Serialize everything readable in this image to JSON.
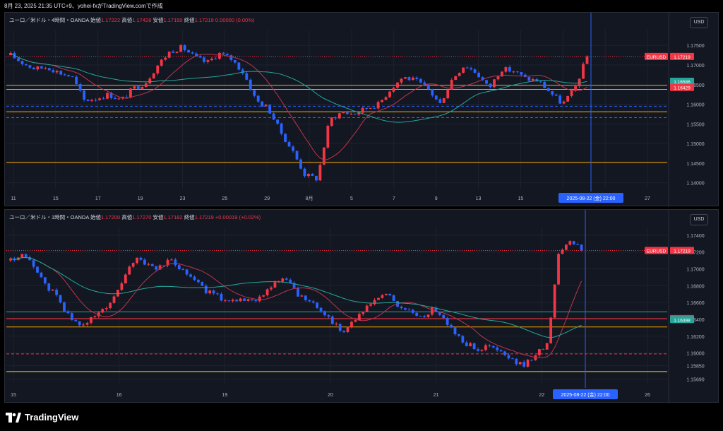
{
  "header": {
    "text": "8月 23, 2025 21:35 UTC+9、yohei-fxがTradingView.comで作成"
  },
  "footer": {
    "brand": "TradingView"
  },
  "colors": {
    "up": "#f23645",
    "down": "#2962ff",
    "red_ma": "#c2334d",
    "teal_ma": "#26a69a",
    "orange_line": "#f7a600",
    "yellow_line": "#f5d31a",
    "dotted_red": "#f23645",
    "dashed_blue": "#2962ff",
    "wave_green": "#4caf50",
    "cursor": "#2962ff"
  },
  "panes": [
    {
      "legend": {
        "symbol": "ユーロ／米ドル・4時間・OANDA",
        "o_label": "始値",
        "o": "1.17222",
        "h_label": "高値",
        "h": "1.17428",
        "l_label": "安値",
        "l": "1.17150",
        "c_label": "終値",
        "c": "1.17219",
        "chg": "0.00000 (0.00%)"
      },
      "currency": "USD",
      "chart_data": {
        "type": "candlestick",
        "ylim": [
          1.1385,
          1.179
        ],
        "y_ticks": [
          "1.17500",
          "1.17000",
          "1.16500",
          "1.16000",
          "1.15500",
          "1.15000",
          "1.14500",
          "1.14000"
        ],
        "x_ticks": [
          "11",
          "15",
          "17",
          "19",
          "23",
          "25",
          "29",
          "8月",
          "5",
          "7",
          "9",
          "13",
          "15",
          "19",
          "21",
          "27"
        ],
        "path_points": [
          1.1725,
          1.1705,
          1.169,
          1.1695,
          1.168,
          1.167,
          1.161,
          1.1615,
          1.1625,
          1.161,
          1.164,
          1.1655,
          1.17,
          1.1735,
          1.1745,
          1.172,
          1.1705,
          1.173,
          1.1715,
          1.168,
          1.161,
          1.159,
          1.153,
          1.148,
          1.142,
          1.141,
          1.156,
          1.158,
          1.1575,
          1.159,
          1.16,
          1.164,
          1.167,
          1.166,
          1.164,
          1.16,
          1.1665,
          1.17,
          1.168,
          1.164,
          1.169,
          1.1685,
          1.1665,
          1.166,
          1.163,
          1.16,
          1.164,
          1.1722
        ],
        "current_price": "1.17219",
        "price_labels": [
          {
            "text": "EURUSD",
            "value": 1.17219,
            "color": "#f23645",
            "name": "symbol"
          },
          {
            "text": "1.17219",
            "value": 1.17219,
            "color": "#f23645",
            "name": "price"
          },
          {
            "text": "1.16586",
            "value": 1.16586,
            "color": "#26a69a",
            "name": "ma"
          },
          {
            "text": "1.16429",
            "value": 1.16429,
            "color": "#f23645",
            "name": "ma2"
          }
        ],
        "h_lines": [
          {
            "value": 1.17219,
            "style": "dotted",
            "color": "#f23645"
          },
          {
            "value": 1.1648,
            "style": "solid",
            "color": "#f7a600"
          },
          {
            "value": 1.1638,
            "style": "solid",
            "color": "#f7a600"
          },
          {
            "value": 1.1595,
            "style": "dashed",
            "color": "#2962ff"
          },
          {
            "value": 1.1581,
            "style": "solid",
            "color": "#f7a600"
          },
          {
            "value": 1.1566,
            "style": "dashed",
            "color": "#2962ff"
          },
          {
            "value": 1.1452,
            "style": "solid",
            "color": "#f7a600"
          }
        ],
        "cursor_label": "2025-08-22 (金)  22:00"
      }
    },
    {
      "legend": {
        "symbol": "ユーロ／米ドル・1時間・OANDA",
        "o_label": "始値",
        "o": "1.17200",
        "h_label": "高値",
        "h": "1.17270",
        "l_label": "安値",
        "l": "1.17182",
        "c_label": "終値",
        "c": "1.17219",
        "chg": "+0.00019 (+0.02%)"
      },
      "currency": "USD",
      "chart_data": {
        "type": "candlestick",
        "ylim": [
          1.1562,
          1.175
        ],
        "y_ticks": [
          "1.17400",
          "1.17200",
          "1.17000",
          "1.16800",
          "1.16600",
          "1.16400",
          "1.16200",
          "1.16000",
          "1.15850",
          "1.15690"
        ],
        "x_ticks": [
          "15",
          "16",
          "19",
          "20",
          "21",
          "22",
          "26"
        ],
        "path_points": [
          1.171,
          1.1715,
          1.1705,
          1.168,
          1.167,
          1.1645,
          1.1632,
          1.164,
          1.165,
          1.1665,
          1.169,
          1.1715,
          1.1705,
          1.17,
          1.1712,
          1.17,
          1.169,
          1.1675,
          1.1668,
          1.1662,
          1.1665,
          1.166,
          1.167,
          1.168,
          1.169,
          1.1672,
          1.166,
          1.1655,
          1.164,
          1.1625,
          1.1638,
          1.165,
          1.1665,
          1.167,
          1.1655,
          1.165,
          1.164,
          1.1655,
          1.164,
          1.1622,
          1.161,
          1.1605,
          1.1608,
          1.16,
          1.159,
          1.1585,
          1.16,
          1.161,
          1.172,
          1.1735,
          1.1722
        ],
        "current_price": "1.17219",
        "price_labels": [
          {
            "text": "EURUSD",
            "value": 1.17219,
            "color": "#f23645",
            "name": "symbol"
          },
          {
            "text": "1.17219",
            "value": 1.17219,
            "color": "#f23645",
            "name": "price"
          },
          {
            "text": "1.16410",
            "value": 1.1641,
            "color": "#f23645",
            "name": "ma"
          },
          {
            "text": "1.16398",
            "value": 1.16398,
            "color": "#26a69a",
            "name": "ma2"
          }
        ],
        "h_lines": [
          {
            "value": 1.17219,
            "style": "dotted",
            "color": "#f23645"
          },
          {
            "value": 1.1649,
            "style": "solid",
            "color": "#26a69a"
          },
          {
            "value": 1.1641,
            "style": "solid",
            "color": "#f23645"
          },
          {
            "value": 1.1631,
            "style": "solid",
            "color": "#f7a600"
          },
          {
            "value": 1.1599,
            "style": "dashed",
            "color": "#f23645"
          },
          {
            "value": 1.1578,
            "style": "solid",
            "color": "#f5d31a"
          }
        ],
        "cursor_label": "2025-08-22 (金)  22:00"
      }
    }
  ]
}
